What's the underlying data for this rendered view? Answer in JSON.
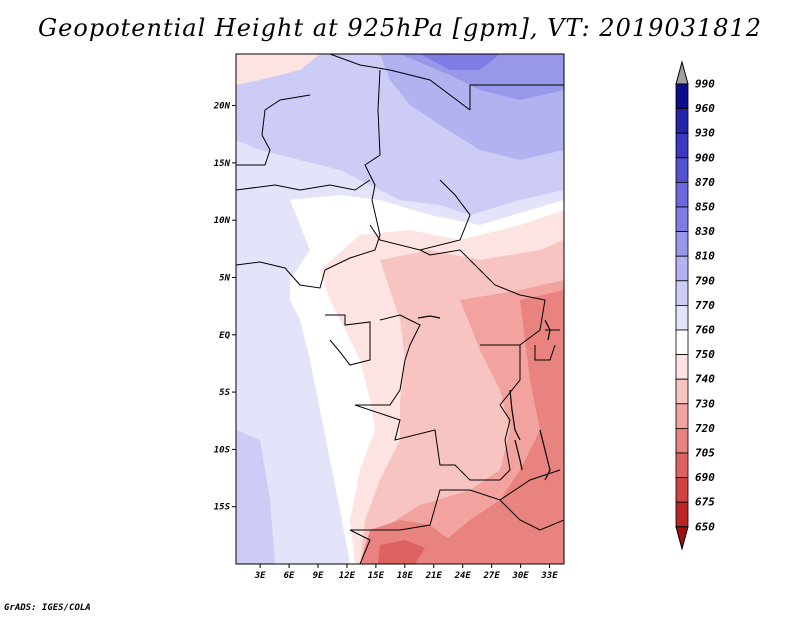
{
  "title": "Geopotential Height at 925hPa [gpm], VT: 2019031812",
  "credit": "GrADS: IGES/COLA",
  "axes": {
    "lat_labels": [
      "20N",
      "15N",
      "10N",
      "5N",
      "EQ",
      "5S",
      "10S",
      "15S"
    ],
    "lat_values": [
      20,
      15,
      10,
      5,
      0,
      -5,
      -10,
      -15
    ],
    "lon_labels": [
      "3E",
      "6E",
      "9E",
      "12E",
      "15E",
      "18E",
      "21E",
      "24E",
      "27E",
      "30E",
      "33E"
    ],
    "lon_values": [
      3,
      6,
      9,
      12,
      15,
      18,
      21,
      24,
      27,
      30,
      33
    ]
  },
  "colorbar": {
    "levels": [
      "990",
      "960",
      "930",
      "900",
      "870",
      "850",
      "830",
      "810",
      "790",
      "770",
      "760",
      "750",
      "740",
      "730",
      "720",
      "705",
      "690",
      "675",
      "650"
    ],
    "colors": [
      "#0d0c8c",
      "#2524a8",
      "#3a39bf",
      "#5251cf",
      "#6a69db",
      "#7e7de3",
      "#9897ea",
      "#b3b2f1",
      "#ccccf6",
      "#e3e3fa",
      "#ffffff",
      "#fde3e1",
      "#f8c4c1",
      "#f2a3a0",
      "#e88380",
      "#de6360",
      "#cf4240",
      "#bb2624",
      "#a01010"
    ]
  }
}
